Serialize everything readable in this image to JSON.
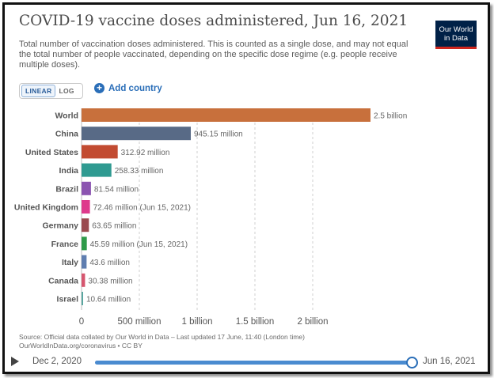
{
  "header": {
    "title": "COVID-19 vaccine doses administered, Jun 16, 2021",
    "subtitle": "Total number of vaccination doses administered. This is counted as a single dose, and may not equal the total number of people vaccinated, depending on the specific dose regime (e.g. people receive multiple doses)."
  },
  "logo": {
    "line1": "Our World",
    "line2": "in Data"
  },
  "controls": {
    "linear_label": "LINEAR",
    "log_label": "LOG",
    "add_country_label": "Add country"
  },
  "chart_data": {
    "type": "bar",
    "orientation": "horizontal",
    "title": "COVID-19 vaccine doses administered, Jun 16, 2021",
    "unit": "doses",
    "xlim": [
      0,
      2500000000
    ],
    "x_ticks": [
      0,
      500000000,
      1000000000,
      1500000000,
      2000000000
    ],
    "x_tick_labels": [
      "0",
      "500 million",
      "1 billion",
      "1.5 billion",
      "2 billion"
    ],
    "grid": true,
    "categories": [
      "World",
      "China",
      "United States",
      "India",
      "Brazil",
      "United Kingdom",
      "Germany",
      "France",
      "Italy",
      "Canada",
      "Israel"
    ],
    "values": [
      2500000000,
      945150000,
      312920000,
      258330000,
      81540000,
      72460000,
      63650000,
      45590000,
      43600000,
      30380000,
      10640000
    ],
    "labels": [
      "2.5 billion",
      "945.15 million",
      "312.92 million",
      "258.33 million",
      "81.54 million",
      "72.46 million (Jun 15, 2021)",
      "63.65 million",
      "45.59 million (Jun 15, 2021)",
      "43.6 million",
      "30.38 million",
      "10.64 million"
    ],
    "colors": [
      "#c8703c",
      "#586a86",
      "#c24b31",
      "#2f9a91",
      "#8b54b0",
      "#de3a8c",
      "#9a4a4f",
      "#2f9a4a",
      "#5f7eb0",
      "#d6566f",
      "#5aa6a0"
    ]
  },
  "source": {
    "line1": "Source: Official data collated by Our World in Data – Last updated 17 June, 11:40 (London time)",
    "line2": "OurWorldInData.org/coronavirus • CC BY"
  },
  "timeline": {
    "start_label": "Dec 2, 2020",
    "end_label": "Jun 16, 2021",
    "position": 1.0
  }
}
